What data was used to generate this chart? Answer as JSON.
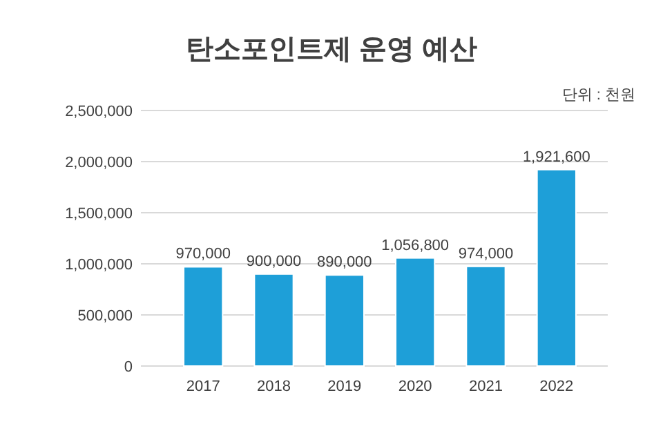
{
  "chart_data": {
    "type": "bar",
    "title": "탄소포인트제 운영 예산",
    "annotations": [
      "단위 : 천원"
    ],
    "categories": [
      "2017",
      "2018",
      "2019",
      "2020",
      "2021",
      "2022"
    ],
    "values": [
      970000,
      900000,
      890000,
      1056800,
      974000,
      1921600
    ],
    "color": "#1e9fd8",
    "ylim": [
      0,
      2500000
    ],
    "yticks": [
      {
        "value": 0,
        "label": "0"
      },
      {
        "value": 500000,
        "label": "500,000"
      },
      {
        "value": 1000000,
        "label": "1,000,000"
      },
      {
        "value": 1500000,
        "label": "1,500,000"
      },
      {
        "value": 2000000,
        "label": "2,000,000"
      },
      {
        "value": 2500000,
        "label": "2,500,000"
      }
    ],
    "value_labels": [
      "970,000",
      "900,000",
      "890,000",
      "1,056,800",
      "974,000",
      "1,921,600"
    ],
    "grid": true
  }
}
